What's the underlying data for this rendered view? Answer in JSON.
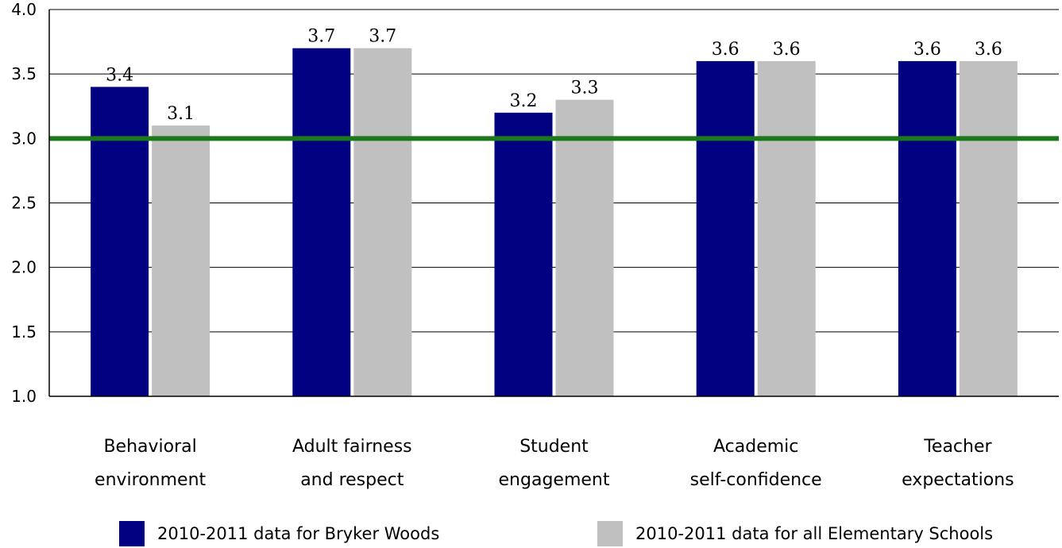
{
  "chart_data": {
    "type": "bar",
    "categories": [
      [
        "Behavioral",
        "environment"
      ],
      [
        "Adult fairness",
        "and respect"
      ],
      [
        "Student",
        "engagement"
      ],
      [
        "Academic",
        "self-confidence"
      ],
      [
        "Teacher",
        "expectations"
      ]
    ],
    "series": [
      {
        "name": "2010-2011 data for Bryker Woods",
        "color": "#000080",
        "values": [
          3.4,
          3.7,
          3.2,
          3.6,
          3.6
        ]
      },
      {
        "name": "2010-2011 data for all Elementary Schools",
        "color": "#c0c0c0",
        "values": [
          3.1,
          3.7,
          3.3,
          3.6,
          3.6
        ]
      }
    ],
    "data_labels": [
      [
        "3.4",
        "3.7",
        "3.2",
        "3.6",
        "3.6"
      ],
      [
        "3.1",
        "3.7",
        "3.3",
        "3.6",
        "3.6"
      ]
    ],
    "ylim": [
      1.0,
      4.0
    ],
    "yticks": [
      "1.0",
      "1.5",
      "2.0",
      "2.5",
      "3.0",
      "3.5",
      "4.0"
    ],
    "reference_line": {
      "value": 3.0,
      "color": "#1a7a1a"
    },
    "grid": true,
    "legend_position": "bottom"
  }
}
